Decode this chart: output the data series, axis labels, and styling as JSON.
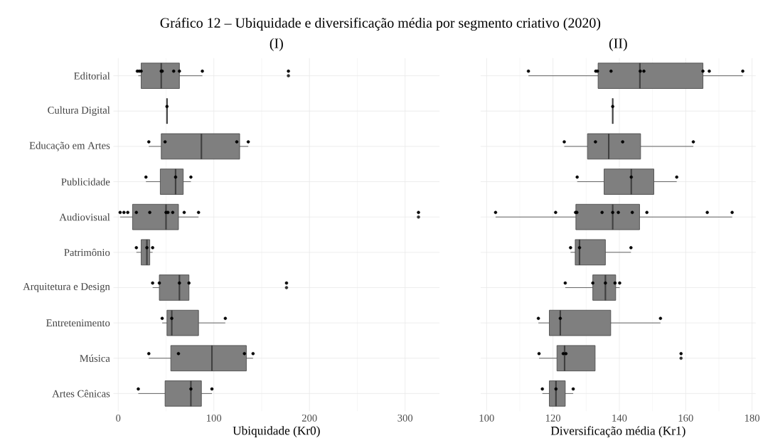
{
  "chart_data": [
    {
      "type": "box",
      "orientation": "horizontal",
      "title": "(I)",
      "xlabel": "Ubiquidade (Kr0)",
      "annotations": [
        "Gráfico 12 – Ubiquidade e diversificação média por segmento criativo (2020)"
      ],
      "categories": [
        "Editorial",
        "Cultura Digital",
        "Educação em Artes",
        "Publicidade",
        "Audiovisual",
        "Patrimônio",
        "Arquitetura e Design",
        "Entretenimento",
        "Música",
        "Artes Cênicas"
      ],
      "xlim": [
        -5,
        336
      ],
      "xticks": [
        0,
        100,
        200,
        300
      ],
      "grid": true,
      "series": [
        {
          "type": "box",
          "colors": [
            "#7f7f7f",
            "#404040",
            "#7f7f7f",
            "#7f7f7f",
            "#7f7f7f",
            "#7f7f7f",
            "#7f7f7f",
            "#7f7f7f",
            "#7f7f7f",
            "#7f7f7f"
          ],
          "boxes": [
            {
              "low": 21,
              "q1": 24,
              "median": 45,
              "q3": 64,
              "high": 88,
              "outliers": [
                178
              ]
            },
            {
              "low": 51,
              "q1": 51,
              "median": 51,
              "q3": 51,
              "high": 51
            },
            {
              "low": 32,
              "q1": 45,
              "median": 87,
              "q3": 127,
              "high": 136
            },
            {
              "low": 29,
              "q1": 44,
              "median": 60,
              "q3": 68,
              "high": 76
            },
            {
              "low": 2,
              "q1": 15,
              "median": 50,
              "q3": 63,
              "high": 84,
              "outliers": [
                314
              ]
            },
            {
              "low": 19,
              "q1": 24,
              "median": 30,
              "q3": 33,
              "high": 36
            },
            {
              "low": 36,
              "q1": 43,
              "median": 64,
              "q3": 74,
              "high": 74,
              "outliers": [
                176
              ]
            },
            {
              "low": 46,
              "q1": 51,
              "median": 56,
              "q3": 84,
              "high": 112
            },
            {
              "low": 32,
              "q1": 55,
              "median": 98,
              "q3": 134,
              "high": 141
            },
            {
              "low": 21,
              "q1": 49,
              "median": 76,
              "q3": 87,
              "high": 98
            }
          ]
        },
        {
          "type": "scatter",
          "color": "#000000",
          "x": [
            "Editorial",
            "Editorial",
            "Editorial",
            "Editorial",
            "Editorial",
            "Editorial",
            "Editorial",
            "Editorial",
            "Editorial",
            "Cultura Digital",
            "Educação em Artes",
            "Educação em Artes",
            "Educação em Artes",
            "Educação em Artes",
            "Publicidade",
            "Publicidade",
            "Publicidade",
            "Audiovisual",
            "Audiovisual",
            "Audiovisual",
            "Audiovisual",
            "Audiovisual",
            "Audiovisual",
            "Audiovisual",
            "Audiovisual",
            "Audiovisual",
            "Audiovisual",
            "Audiovisual",
            "Patrimônio",
            "Patrimônio",
            "Patrimônio",
            "Arquitetura e Design",
            "Arquitetura e Design",
            "Arquitetura e Design",
            "Arquitetura e Design",
            "Arquitetura e Design",
            "Entretenimento",
            "Entretenimento",
            "Entretenimento",
            "Música",
            "Música",
            "Música",
            "Música",
            "Artes Cênicas",
            "Artes Cênicas",
            "Artes Cênicas"
          ],
          "values": [
            24,
            45,
            64,
            58,
            20,
            22,
            46,
            88,
            178,
            51,
            49,
            32,
            124,
            136,
            76,
            29,
            60,
            2,
            10,
            19,
            6,
            33,
            84,
            69,
            50,
            57,
            52,
            314,
            19,
            30,
            36,
            43,
            64,
            74,
            36,
            176,
            56,
            46,
            112,
            63,
            32,
            132,
            141,
            21,
            76,
            98
          ]
        }
      ]
    },
    {
      "type": "box",
      "orientation": "horizontal",
      "title": "(II)",
      "xlabel": "Diversificação média (Kr1)",
      "tick_labels": "x",
      "categories": [
        "Editorial",
        "Cultura Digital",
        "Educação em Artes",
        "Publicidade",
        "Audiovisual",
        "Patrimônio",
        "Arquitetura e Design",
        "Entretenimento",
        "Música",
        "Artes Cênicas"
      ],
      "xlim": [
        98.2,
        181.1
      ],
      "xticks": [
        100,
        120,
        140,
        160,
        180
      ],
      "grid": true,
      "series": [
        {
          "type": "box",
          "colors": [
            "#7f7f7f",
            "#404040",
            "#7f7f7f",
            "#7f7f7f",
            "#7f7f7f",
            "#7f7f7f",
            "#7f7f7f",
            "#7f7f7f",
            "#7f7f7f",
            "#7f7f7f"
          ],
          "boxes": [
            {
              "low": 112.6,
              "q1": 133.6,
              "median": 146.2,
              "q3": 165.2,
              "high": 177.2
            },
            {
              "low": 138,
              "q1": 138,
              "median": 138,
              "q3": 138,
              "high": 138
            },
            {
              "low": 123.4,
              "q1": 130.4,
              "median": 136.8,
              "q3": 146.4,
              "high": 162.3
            },
            {
              "low": 127.3,
              "q1": 135.4,
              "median": 143.6,
              "q3": 150.4,
              "high": 157.3
            },
            {
              "low": 102.7,
              "q1": 126.9,
              "median": 138,
              "q3": 146.1,
              "high": 174
            },
            {
              "low": 125.3,
              "q1": 126.7,
              "median": 128,
              "q3": 135.8,
              "high": 143.5
            },
            {
              "low": 123.7,
              "q1": 132,
              "median": 135.8,
              "q3": 138.9,
              "high": 140.1
            },
            {
              "low": 115.6,
              "q1": 118.9,
              "median": 122.2,
              "q3": 137.4,
              "high": 152.4
            },
            {
              "low": 115.8,
              "q1": 121.2,
              "median": 123.5,
              "q3": 132.7,
              "high": 132.7,
              "outliers": [
                158.6
              ]
            },
            {
              "low": 116.8,
              "q1": 118.9,
              "median": 120.9,
              "q3": 123.7,
              "high": 126.1
            }
          ]
        },
        {
          "type": "scatter",
          "color": "#000000",
          "x": [
            "Editorial",
            "Editorial",
            "Editorial",
            "Editorial",
            "Editorial",
            "Editorial",
            "Editorial",
            "Editorial",
            "Editorial",
            "Cultura Digital",
            "Educação em Artes",
            "Educação em Artes",
            "Educação em Artes",
            "Educação em Artes",
            "Publicidade",
            "Publicidade",
            "Publicidade",
            "Audiovisual",
            "Audiovisual",
            "Audiovisual",
            "Audiovisual",
            "Audiovisual",
            "Audiovisual",
            "Audiovisual",
            "Audiovisual",
            "Audiovisual",
            "Audiovisual",
            "Audiovisual",
            "Patrimônio",
            "Patrimônio",
            "Patrimônio",
            "Arquitetura e Design",
            "Arquitetura e Design",
            "Arquitetura e Design",
            "Arquitetura e Design",
            "Arquitetura e Design",
            "Entretenimento",
            "Entretenimento",
            "Entretenimento",
            "Música",
            "Música",
            "Música",
            "Música",
            "Artes Cênicas",
            "Artes Cênicas",
            "Artes Cênicas"
          ],
          "values": [
            132.9,
            133.4,
            137.5,
            146.3,
            147.4,
            165.2,
            167.1,
            112.6,
            177.2,
            138,
            123.4,
            162.3,
            141,
            132.8,
            127.3,
            143.6,
            157.3,
            102.7,
            127.2,
            126.8,
            134.8,
            138,
            139.7,
            143.9,
            148.3,
            166.5,
            120.8,
            174,
            143.5,
            125.3,
            128,
            123.7,
            132,
            138.7,
            140.1,
            135.8,
            115.6,
            122.2,
            152.4,
            115.8,
            123.9,
            123.1,
            158.6,
            116.8,
            126.1,
            120.9
          ]
        }
      ]
    }
  ]
}
